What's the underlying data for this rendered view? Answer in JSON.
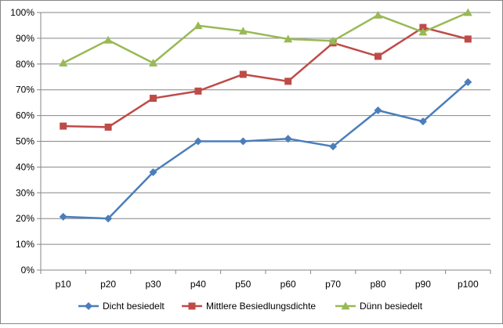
{
  "chart_data": {
    "type": "line",
    "categories": [
      "p10",
      "p20",
      "p30",
      "p40",
      "p50",
      "p60",
      "p70",
      "p80",
      "p90",
      "p100"
    ],
    "ylim": [
      0,
      100
    ],
    "yticks": [
      0,
      10,
      20,
      30,
      40,
      50,
      60,
      70,
      80,
      90,
      100
    ],
    "ytick_labels": [
      "0%",
      "10%",
      "20%",
      "30%",
      "40%",
      "50%",
      "60%",
      "70%",
      "80%",
      "90%",
      "100%"
    ],
    "grid": "horizontal",
    "legend_position": "bottom",
    "series": [
      {
        "name": "Dicht besiedelt",
        "color": "#4a7ebb",
        "marker": "diamond",
        "values": [
          20.7,
          20,
          38,
          50,
          50,
          51,
          48,
          62,
          57.7,
          73
        ]
      },
      {
        "name": "Mittlere Besiedlungsdichte",
        "color": "#be4b48",
        "marker": "square",
        "values": [
          55.9,
          55.5,
          66.7,
          69.5,
          76,
          73.3,
          88.2,
          83,
          94.2,
          89.7
        ]
      },
      {
        "name": "Dünn besiedelt",
        "color": "#98b954",
        "marker": "triangle",
        "values": [
          80.4,
          89.3,
          80.4,
          94.9,
          92.8,
          89.7,
          89,
          99,
          92.4,
          100
        ]
      }
    ]
  }
}
